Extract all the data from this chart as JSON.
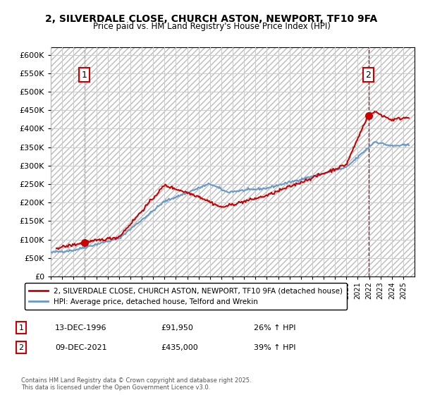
{
  "title": "2, SILVERDALE CLOSE, CHURCH ASTON, NEWPORT, TF10 9FA",
  "subtitle": "Price paid vs. HM Land Registry's House Price Index (HPI)",
  "ylim": [
    0,
    620000
  ],
  "yticks": [
    0,
    50000,
    100000,
    150000,
    200000,
    250000,
    300000,
    350000,
    400000,
    450000,
    500000,
    550000,
    600000
  ],
  "xlim_start": 1994.0,
  "xlim_end": 2026.0,
  "sale1_date": 1996.96,
  "sale1_price": 91950,
  "sale1_label": "1",
  "sale2_date": 2021.94,
  "sale2_price": 435000,
  "sale2_label": "2",
  "legend_line1": "2, SILVERDALE CLOSE, CHURCH ASTON, NEWPORT, TF10 9FA (detached house)",
  "legend_line2": "HPI: Average price, detached house, Telford and Wrekin",
  "table_row1_num": "1",
  "table_row1_date": "13-DEC-1996",
  "table_row1_price": "£91,950",
  "table_row1_hpi": "26% ↑ HPI",
  "table_row2_num": "2",
  "table_row2_date": "09-DEC-2021",
  "table_row2_price": "£435,000",
  "table_row2_hpi": "39% ↑ HPI",
  "footer": "Contains HM Land Registry data © Crown copyright and database right 2025.\nThis data is licensed under the Open Government Licence v3.0.",
  "red_color": "#cc0000",
  "blue_color": "#6699cc",
  "bg_hatch_color": "#dddddd",
  "grid_color": "#cccccc"
}
